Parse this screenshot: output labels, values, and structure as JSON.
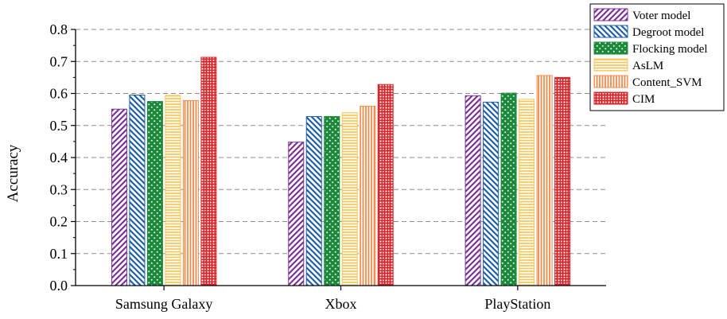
{
  "chart_data": {
    "type": "bar",
    "title": "",
    "xlabel": "",
    "ylabel": "Accuracy",
    "ylim": [
      0.0,
      0.8
    ],
    "yticks": [
      0.0,
      0.1,
      0.2,
      0.3,
      0.4,
      0.5,
      0.6,
      0.7,
      0.8
    ],
    "ytick_labels": [
      "0.0",
      "0.1",
      "0.2",
      "0.3",
      "0.4",
      "0.5",
      "0.6",
      "0.7",
      "0.8"
    ],
    "grid": "horizontal dashed",
    "legend_position": "top-right",
    "categories": [
      "Samsung Galaxy",
      "Xbox",
      "PlayStation"
    ],
    "series": [
      {
        "name": "Voter model",
        "values": [
          0.551,
          0.448,
          0.593
        ],
        "color": "#7B3294",
        "pattern": "diagonal-up"
      },
      {
        "name": "Degroot model",
        "values": [
          0.595,
          0.528,
          0.573
        ],
        "color": "#1F5FA8",
        "pattern": "diagonal-down"
      },
      {
        "name": "Flocking model",
        "values": [
          0.575,
          0.528,
          0.601
        ],
        "color": "#1A8A3A",
        "pattern": "dots"
      },
      {
        "name": "AsLM",
        "values": [
          0.594,
          0.54,
          0.582
        ],
        "color": "#F6C65B",
        "pattern": "horizontal"
      },
      {
        "name": "Content_SVM",
        "values": [
          0.578,
          0.56,
          0.656
        ],
        "color": "#F08A4B",
        "pattern": "vertical"
      },
      {
        "name": "CIM",
        "values": [
          0.713,
          0.628,
          0.65
        ],
        "color": "#D7262B",
        "pattern": "grid"
      }
    ]
  }
}
